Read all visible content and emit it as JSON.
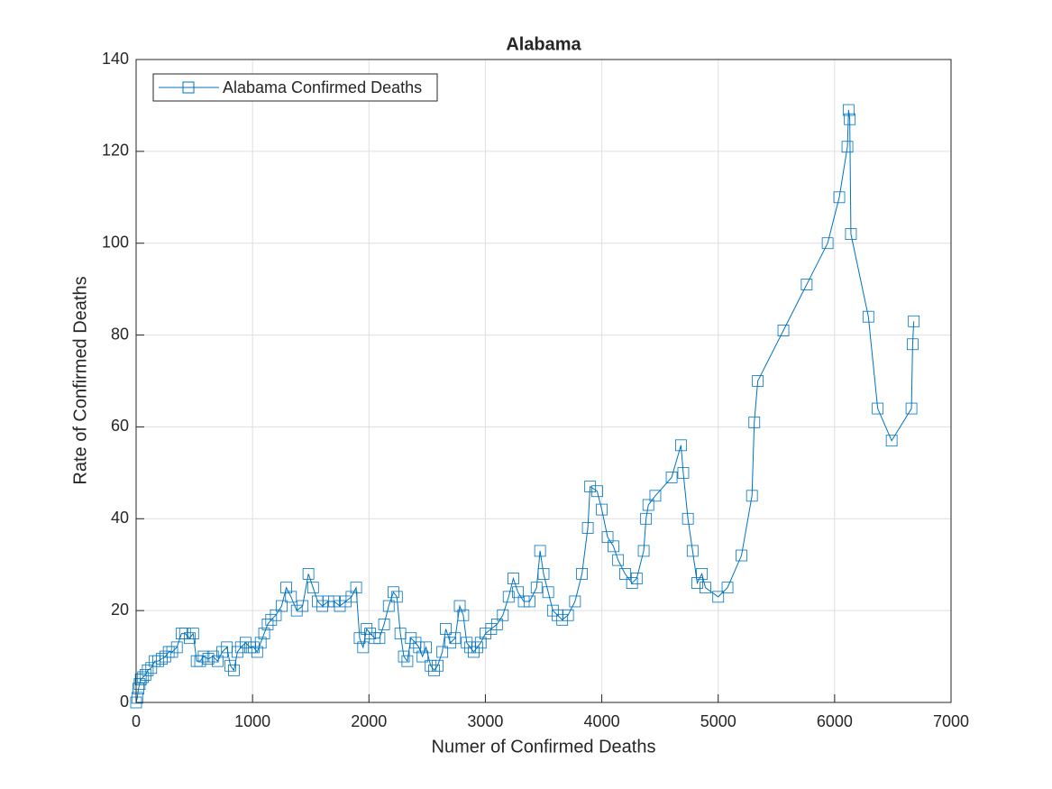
{
  "chart_data": {
    "type": "line",
    "title": "Alabama",
    "x_label": "Numer of Confirmed Deaths",
    "y_label": "Rate of Confirmed Deaths",
    "xlim": [
      0,
      7000
    ],
    "ylim": [
      0,
      140
    ],
    "xticks": [
      0,
      1000,
      2000,
      3000,
      4000,
      5000,
      6000,
      7000
    ],
    "yticks": [
      0,
      20,
      40,
      60,
      80,
      100,
      120,
      140
    ],
    "grid": true,
    "legend_position": "upper-left",
    "marker": "square",
    "series": [
      {
        "name": "Alabama Confirmed Deaths",
        "color": "#0072BD",
        "x": [
          0,
          10,
          20,
          30,
          40,
          60,
          80,
          100,
          130,
          160,
          190,
          220,
          250,
          280,
          310,
          350,
          390,
          420,
          460,
          490,
          520,
          550,
          580,
          620,
          660,
          700,
          740,
          780,
          810,
          840,
          870,
          900,
          940,
          980,
          1010,
          1040,
          1070,
          1100,
          1130,
          1160,
          1200,
          1250,
          1290,
          1330,
          1380,
          1430,
          1480,
          1520,
          1560,
          1600,
          1650,
          1700,
          1750,
          1800,
          1850,
          1890,
          1920,
          1950,
          1980,
          2010,
          2050,
          2090,
          2130,
          2170,
          2210,
          2240,
          2270,
          2300,
          2330,
          2360,
          2400,
          2430,
          2460,
          2490,
          2530,
          2560,
          2590,
          2630,
          2660,
          2700,
          2740,
          2780,
          2810,
          2840,
          2870,
          2900,
          2930,
          2960,
          3000,
          3050,
          3100,
          3150,
          3200,
          3240,
          3280,
          3330,
          3380,
          3440,
          3470,
          3500,
          3540,
          3580,
          3620,
          3660,
          3710,
          3770,
          3830,
          3880,
          3900,
          3960,
          4000,
          4050,
          4100,
          4140,
          4200,
          4260,
          4300,
          4360,
          4380,
          4400,
          4460,
          4600,
          4680,
          4700,
          4740,
          4780,
          4820,
          4860,
          4890,
          5000,
          5080,
          5200,
          5290,
          5310,
          5340,
          5560,
          5760,
          5940,
          6040,
          6110,
          6120,
          6130,
          6140,
          6290,
          6370,
          6490,
          6660,
          6670,
          6680
        ],
        "values": [
          0,
          1,
          3,
          4,
          5,
          5.5,
          6,
          7,
          7.5,
          9,
          9,
          9.5,
          10,
          11,
          11,
          12,
          15,
          15,
          14,
          15,
          9,
          9,
          10,
          9.5,
          10,
          9,
          11,
          12,
          8,
          7,
          11,
          12,
          13,
          12,
          12,
          11,
          13,
          15,
          17,
          18,
          19,
          21,
          25,
          23,
          20,
          21,
          28,
          25,
          22,
          21,
          22,
          22,
          21,
          22,
          23,
          25,
          14,
          12,
          16,
          15,
          14,
          14,
          17,
          21,
          24,
          23,
          15,
          10,
          9,
          14,
          13,
          12,
          10,
          12,
          8,
          7,
          8,
          11,
          16,
          13,
          14,
          21,
          19,
          13,
          12,
          11,
          12,
          13,
          15,
          16,
          17,
          19,
          23,
          27,
          24,
          22,
          22,
          25,
          33,
          28,
          24,
          20,
          19,
          18,
          19,
          22,
          28,
          38,
          47,
          46,
          42,
          36,
          34,
          31,
          28,
          26,
          27,
          33,
          40,
          43,
          45,
          49,
          56,
          50,
          40,
          33,
          26,
          28,
          25,
          23,
          25,
          32,
          45,
          61,
          70,
          81,
          91,
          100,
          110,
          121,
          129,
          127,
          102,
          84,
          64,
          57,
          64,
          78,
          83
        ]
      }
    ]
  }
}
